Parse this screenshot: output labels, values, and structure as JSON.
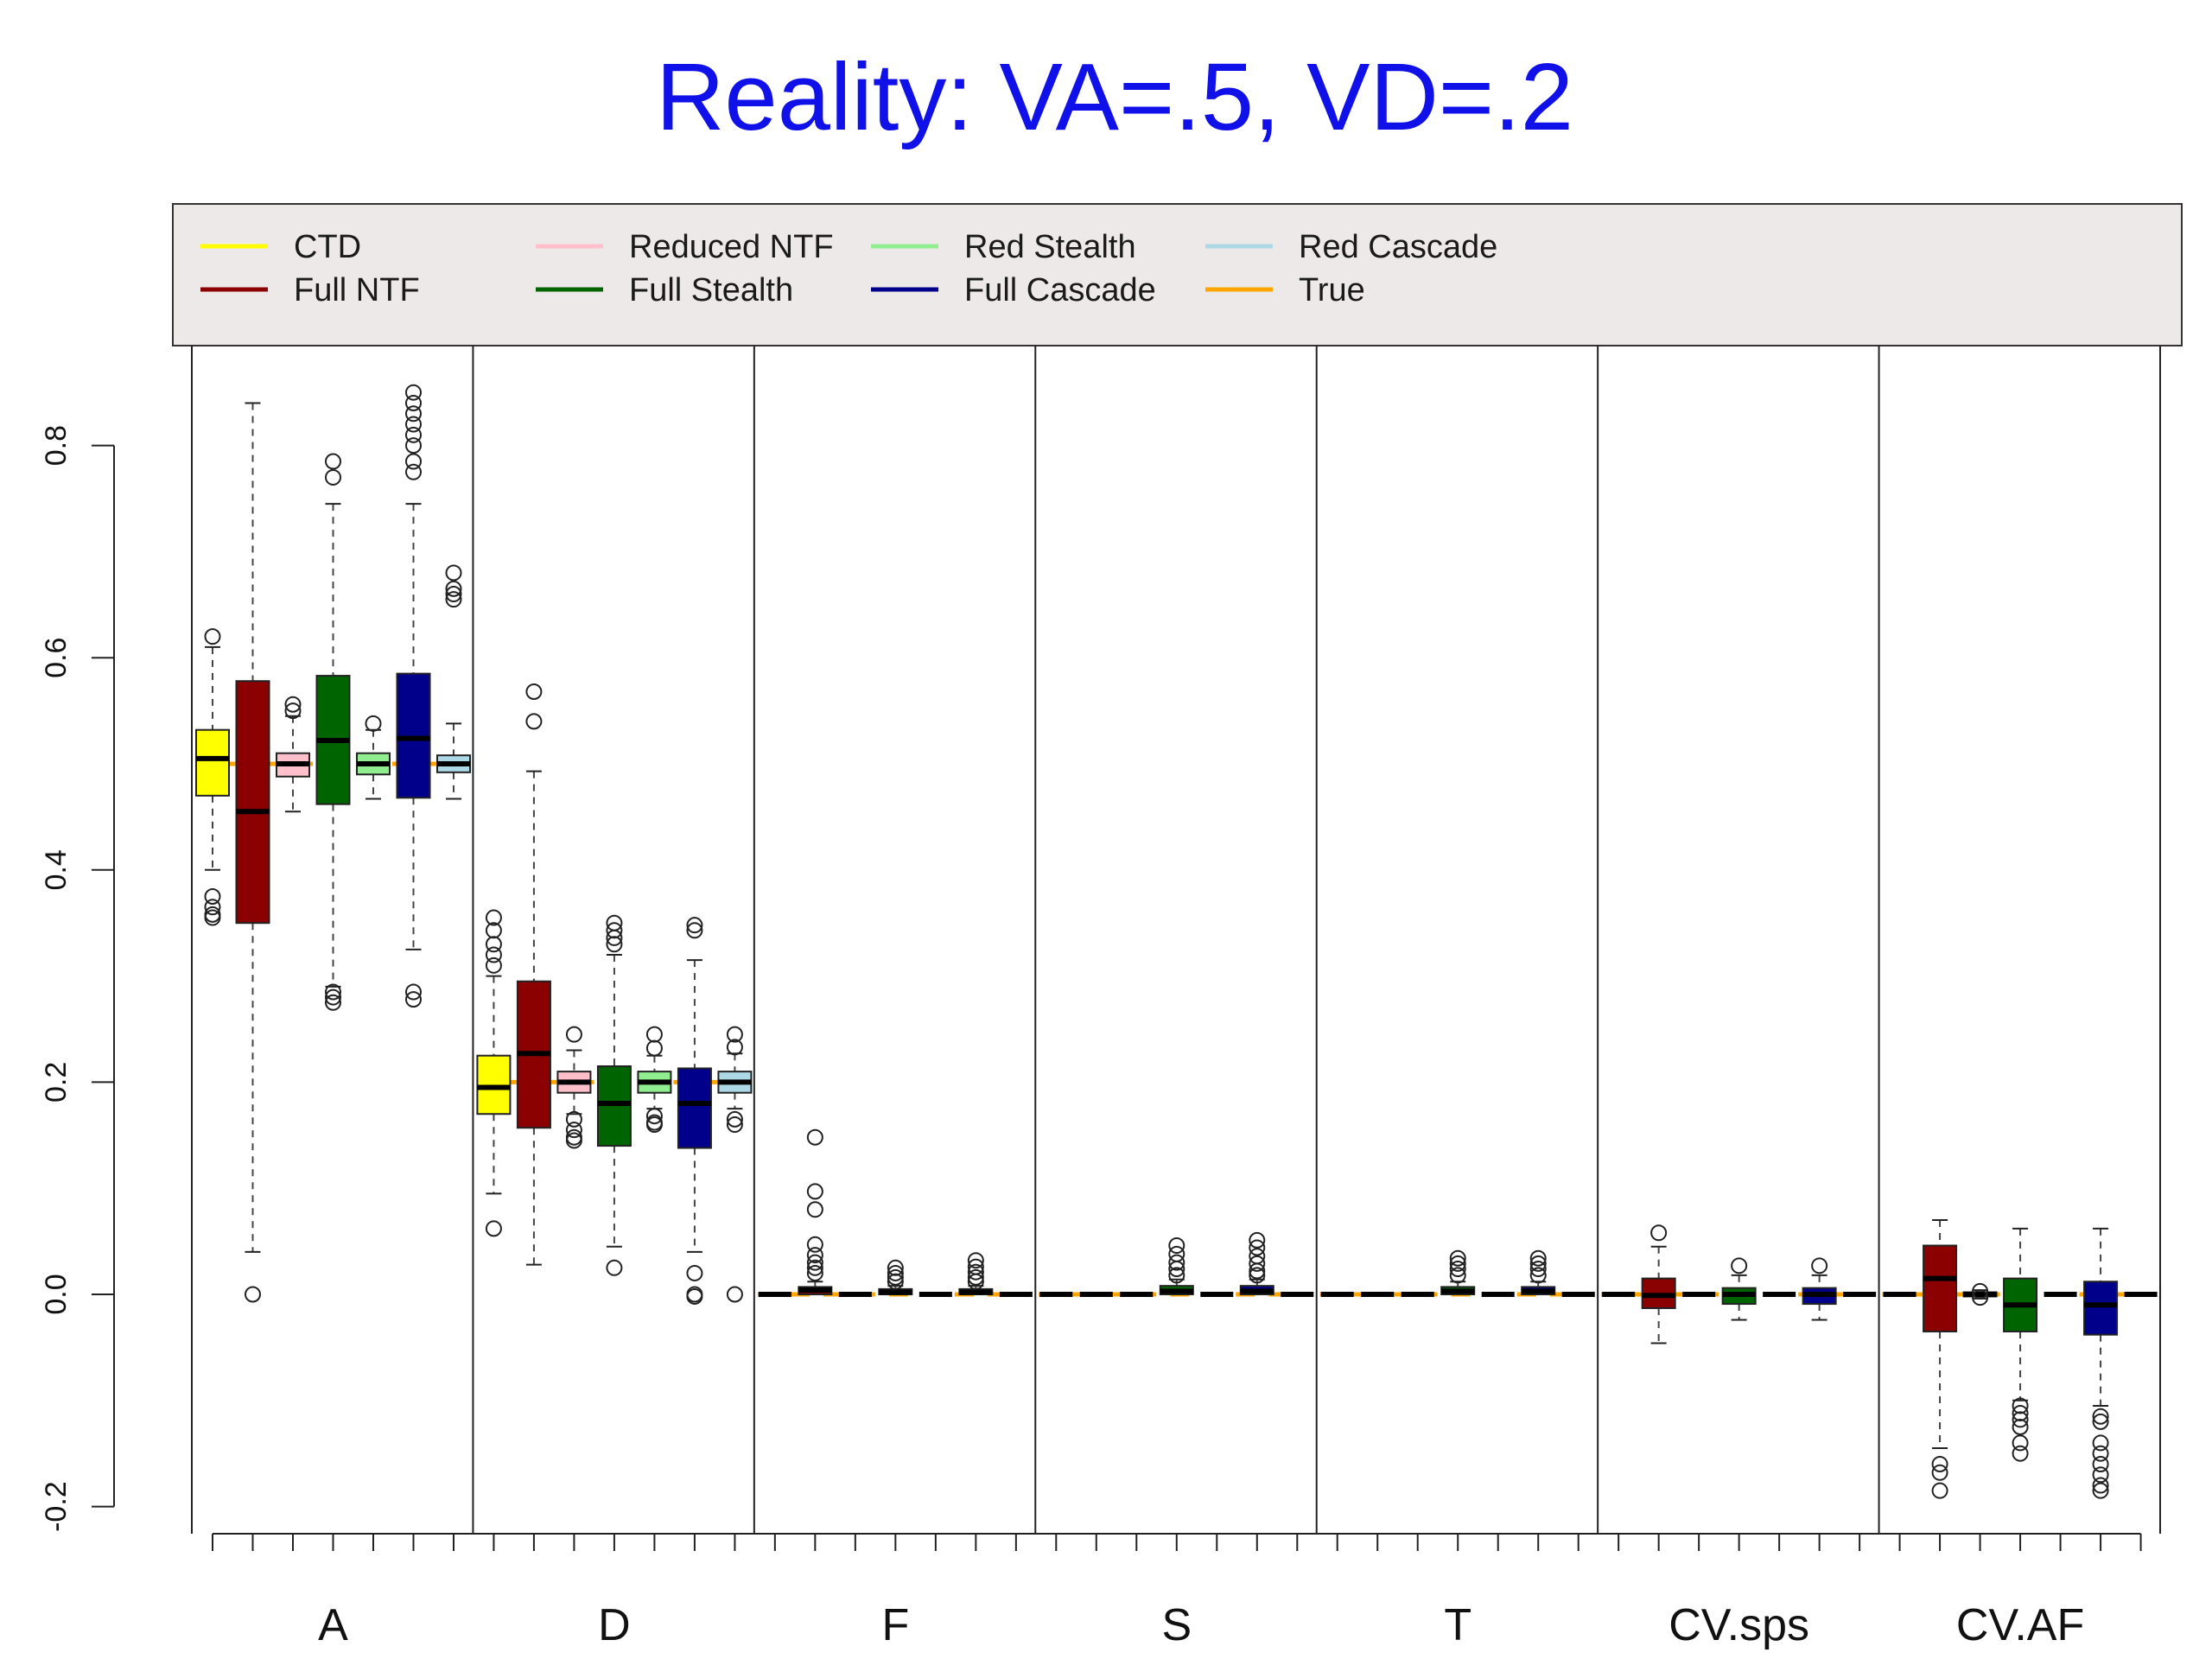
{
  "chart_data": {
    "type": "box",
    "title": "Reality: VA=.5, VD=.2",
    "xlabel": "",
    "ylabel": "",
    "ylim": [
      -0.2,
      0.8
    ],
    "yticks": [
      "-0.2",
      "0.0",
      "0.2",
      "0.4",
      "0.6",
      "0.8"
    ],
    "grid": false,
    "legend_position": "top",
    "groups": [
      "A",
      "D",
      "F",
      "S",
      "T",
      "CV.sps",
      "CV.AF"
    ],
    "series": [
      {
        "name": "CTD",
        "color": "#ffff00"
      },
      {
        "name": "Full NTF",
        "color": "#8b0000"
      },
      {
        "name": "Reduced NTF",
        "color": "#ffc0cb"
      },
      {
        "name": "Full Stealth",
        "color": "#006400"
      },
      {
        "name": "Red Stealth",
        "color": "#90ee90"
      },
      {
        "name": "Full Cascade",
        "color": "#00008b"
      },
      {
        "name": "Red Cascade",
        "color": "#add8e6"
      }
    ],
    "true_line": {
      "name": "True",
      "color": "#ffa500",
      "values": [
        0.5,
        0.2,
        0.0,
        0.0,
        0.0,
        0.0,
        0.0
      ]
    },
    "boxes": [
      {
        "group": 0,
        "series": 0,
        "min": 0.4,
        "q1": 0.47,
        "median": 0.505,
        "q3": 0.532,
        "max": 0.61,
        "outliers": [
          0.62,
          0.375,
          0.365,
          0.358,
          0.355
        ]
      },
      {
        "group": 0,
        "series": 1,
        "min": 0.04,
        "q1": 0.35,
        "median": 0.455,
        "q3": 0.578,
        "max": 0.84,
        "outliers": [
          0.0
        ]
      },
      {
        "group": 0,
        "series": 2,
        "min": 0.455,
        "q1": 0.488,
        "median": 0.5,
        "q3": 0.51,
        "max": 0.545,
        "outliers": [
          0.556,
          0.55
        ]
      },
      {
        "group": 0,
        "series": 3,
        "min": 0.29,
        "q1": 0.462,
        "median": 0.522,
        "q3": 0.583,
        "max": 0.745,
        "outliers": [
          0.785,
          0.77,
          0.285,
          0.28,
          0.275
        ]
      },
      {
        "group": 0,
        "series": 4,
        "min": 0.467,
        "q1": 0.49,
        "median": 0.5,
        "q3": 0.51,
        "max": 0.532,
        "outliers": [
          0.538
        ]
      },
      {
        "group": 0,
        "series": 5,
        "min": 0.325,
        "q1": 0.468,
        "median": 0.524,
        "q3": 0.585,
        "max": 0.745,
        "outliers": [
          0.85,
          0.84,
          0.83,
          0.82,
          0.81,
          0.8,
          0.785,
          0.775,
          0.285,
          0.278
        ]
      },
      {
        "group": 0,
        "series": 6,
        "min": 0.467,
        "q1": 0.492,
        "median": 0.5,
        "q3": 0.508,
        "max": 0.538,
        "outliers": [
          0.68,
          0.665,
          0.66,
          0.655
        ]
      },
      {
        "group": 1,
        "series": 0,
        "min": 0.095,
        "q1": 0.17,
        "median": 0.195,
        "q3": 0.225,
        "max": 0.3,
        "outliers": [
          0.355,
          0.343,
          0.33,
          0.32,
          0.31,
          0.062
        ]
      },
      {
        "group": 1,
        "series": 1,
        "min": 0.028,
        "q1": 0.157,
        "median": 0.227,
        "q3": 0.295,
        "max": 0.493,
        "outliers": [
          0.568,
          0.54
        ]
      },
      {
        "group": 1,
        "series": 2,
        "min": 0.17,
        "q1": 0.19,
        "median": 0.2,
        "q3": 0.21,
        "max": 0.23,
        "outliers": [
          0.245,
          0.165,
          0.155,
          0.148,
          0.145
        ]
      },
      {
        "group": 1,
        "series": 3,
        "min": 0.045,
        "q1": 0.14,
        "median": 0.18,
        "q3": 0.215,
        "max": 0.32,
        "outliers": [
          0.35,
          0.343,
          0.336,
          0.33,
          0.025
        ]
      },
      {
        "group": 1,
        "series": 4,
        "min": 0.175,
        "q1": 0.19,
        "median": 0.2,
        "q3": 0.21,
        "max": 0.225,
        "outliers": [
          0.245,
          0.232,
          0.168,
          0.162,
          0.16
        ]
      },
      {
        "group": 1,
        "series": 5,
        "min": 0.04,
        "q1": 0.138,
        "median": 0.18,
        "q3": 0.213,
        "max": 0.315,
        "outliers": [
          0.348,
          0.343,
          0.02,
          0.0,
          -0.002
        ]
      },
      {
        "group": 1,
        "series": 6,
        "min": 0.175,
        "q1": 0.19,
        "median": 0.2,
        "q3": 0.21,
        "max": 0.227,
        "outliers": [
          0.245,
          0.233,
          0.165,
          0.16,
          0.0
        ]
      },
      {
        "group": 2,
        "series": 0,
        "min": 0.0,
        "q1": 0.0,
        "median": 0.0,
        "q3": 0.0,
        "max": 0.0,
        "outliers": []
      },
      {
        "group": 2,
        "series": 1,
        "min": 0.0,
        "q1": 0.0,
        "median": 0.004,
        "q3": 0.007,
        "max": 0.012,
        "outliers": [
          0.148,
          0.097,
          0.08,
          0.047,
          0.037,
          0.03,
          0.025,
          0.02
        ]
      },
      {
        "group": 2,
        "series": 2,
        "min": 0.0,
        "q1": 0.0,
        "median": 0.0,
        "q3": 0.0,
        "max": 0.0,
        "outliers": []
      },
      {
        "group": 2,
        "series": 3,
        "min": 0.0,
        "q1": 0.0,
        "median": 0.002,
        "q3": 0.005,
        "max": 0.008,
        "outliers": [
          0.025,
          0.02,
          0.016,
          0.012
        ]
      },
      {
        "group": 2,
        "series": 4,
        "min": 0.0,
        "q1": 0.0,
        "median": 0.0,
        "q3": 0.0,
        "max": 0.0,
        "outliers": []
      },
      {
        "group": 2,
        "series": 5,
        "min": 0.0,
        "q1": 0.0,
        "median": 0.002,
        "q3": 0.005,
        "max": 0.008,
        "outliers": [
          0.032,
          0.026,
          0.021,
          0.016,
          0.012
        ]
      },
      {
        "group": 2,
        "series": 6,
        "min": 0.0,
        "q1": 0.0,
        "median": 0.0,
        "q3": 0.0,
        "max": 0.0,
        "outliers": []
      },
      {
        "group": 3,
        "series": 0,
        "min": 0.0,
        "q1": 0.0,
        "median": 0.0,
        "q3": 0.0,
        "max": 0.0,
        "outliers": []
      },
      {
        "group": 3,
        "series": 1,
        "min": 0.0,
        "q1": 0.0,
        "median": 0.0,
        "q3": 0.0,
        "max": 0.0,
        "outliers": []
      },
      {
        "group": 3,
        "series": 2,
        "min": 0.0,
        "q1": 0.0,
        "median": 0.0,
        "q3": 0.0,
        "max": 0.0,
        "outliers": []
      },
      {
        "group": 3,
        "series": 3,
        "min": 0.0,
        "q1": 0.0,
        "median": 0.003,
        "q3": 0.008,
        "max": 0.014,
        "outliers": [
          0.046,
          0.038,
          0.03,
          0.024,
          0.018
        ]
      },
      {
        "group": 3,
        "series": 4,
        "min": 0.0,
        "q1": 0.0,
        "median": 0.0,
        "q3": 0.0,
        "max": 0.0,
        "outliers": []
      },
      {
        "group": 3,
        "series": 5,
        "min": 0.0,
        "q1": 0.0,
        "median": 0.003,
        "q3": 0.008,
        "max": 0.014,
        "outliers": [
          0.051,
          0.044,
          0.036,
          0.029,
          0.022,
          0.018
        ]
      },
      {
        "group": 3,
        "series": 6,
        "min": 0.0,
        "q1": 0.0,
        "median": 0.0,
        "q3": 0.0,
        "max": 0.0,
        "outliers": []
      },
      {
        "group": 4,
        "series": 0,
        "min": 0.0,
        "q1": 0.0,
        "median": 0.0,
        "q3": 0.0,
        "max": 0.0,
        "outliers": []
      },
      {
        "group": 4,
        "series": 1,
        "min": 0.0,
        "q1": 0.0,
        "median": 0.0,
        "q3": 0.0,
        "max": 0.0,
        "outliers": []
      },
      {
        "group": 4,
        "series": 2,
        "min": 0.0,
        "q1": 0.0,
        "median": 0.0,
        "q3": 0.0,
        "max": 0.0,
        "outliers": []
      },
      {
        "group": 4,
        "series": 3,
        "min": 0.0,
        "q1": 0.0,
        "median": 0.003,
        "q3": 0.007,
        "max": 0.012,
        "outliers": [
          0.034,
          0.029,
          0.024,
          0.018
        ]
      },
      {
        "group": 4,
        "series": 4,
        "min": 0.0,
        "q1": 0.0,
        "median": 0.0,
        "q3": 0.0,
        "max": 0.0,
        "outliers": []
      },
      {
        "group": 4,
        "series": 5,
        "min": 0.0,
        "q1": 0.0,
        "median": 0.003,
        "q3": 0.007,
        "max": 0.012,
        "outliers": [
          0.034,
          0.029,
          0.024,
          0.018
        ]
      },
      {
        "group": 4,
        "series": 6,
        "min": 0.0,
        "q1": 0.0,
        "median": 0.0,
        "q3": 0.0,
        "max": 0.0,
        "outliers": []
      },
      {
        "group": 5,
        "series": 0,
        "min": 0.0,
        "q1": 0.0,
        "median": 0.0,
        "q3": 0.0,
        "max": 0.0,
        "outliers": []
      },
      {
        "group": 5,
        "series": 1,
        "min": -0.046,
        "q1": -0.013,
        "median": -0.001,
        "q3": 0.015,
        "max": 0.045,
        "outliers": [
          0.058
        ]
      },
      {
        "group": 5,
        "series": 2,
        "min": 0.0,
        "q1": 0.0,
        "median": 0.0,
        "q3": 0.0,
        "max": 0.0,
        "outliers": []
      },
      {
        "group": 5,
        "series": 3,
        "min": -0.024,
        "q1": -0.009,
        "median": 0.0,
        "q3": 0.006,
        "max": 0.018,
        "outliers": [
          0.027
        ]
      },
      {
        "group": 5,
        "series": 4,
        "min": 0.0,
        "q1": 0.0,
        "median": 0.0,
        "q3": 0.0,
        "max": 0.0,
        "outliers": []
      },
      {
        "group": 5,
        "series": 5,
        "min": -0.024,
        "q1": -0.009,
        "median": 0.0,
        "q3": 0.006,
        "max": 0.018,
        "outliers": [
          0.027
        ]
      },
      {
        "group": 5,
        "series": 6,
        "min": 0.0,
        "q1": 0.0,
        "median": 0.0,
        "q3": 0.0,
        "max": 0.0,
        "outliers": []
      },
      {
        "group": 6,
        "series": 0,
        "min": 0.0,
        "q1": 0.0,
        "median": 0.0,
        "q3": 0.0,
        "max": 0.0,
        "outliers": []
      },
      {
        "group": 6,
        "series": 1,
        "min": -0.145,
        "q1": -0.035,
        "median": 0.015,
        "q3": 0.046,
        "max": 0.07,
        "outliers": [
          -0.16,
          -0.168,
          -0.185
        ]
      },
      {
        "group": 6,
        "series": 2,
        "min": -0.004,
        "q1": -0.002,
        "median": 0.0,
        "q3": 0.002,
        "max": 0.004,
        "outliers": [
          0.003,
          -0.003
        ]
      },
      {
        "group": 6,
        "series": 3,
        "min": -0.1,
        "q1": -0.035,
        "median": -0.01,
        "q3": 0.015,
        "max": 0.062,
        "outliers": [
          -0.105,
          -0.112,
          -0.118,
          -0.125,
          -0.14,
          -0.15
        ]
      },
      {
        "group": 6,
        "series": 4,
        "min": 0.0,
        "q1": 0.0,
        "median": 0.0,
        "q3": 0.0,
        "max": 0.0,
        "outliers": []
      },
      {
        "group": 6,
        "series": 5,
        "min": -0.105,
        "q1": -0.038,
        "median": -0.01,
        "q3": 0.012,
        "max": 0.062,
        "outliers": [
          -0.115,
          -0.12,
          -0.14,
          -0.15,
          -0.16,
          -0.17,
          -0.18,
          -0.185
        ]
      },
      {
        "group": 6,
        "series": 6,
        "min": 0.0,
        "q1": 0.0,
        "median": 0.0,
        "q3": 0.0,
        "max": 0.0,
        "outliers": []
      }
    ]
  }
}
